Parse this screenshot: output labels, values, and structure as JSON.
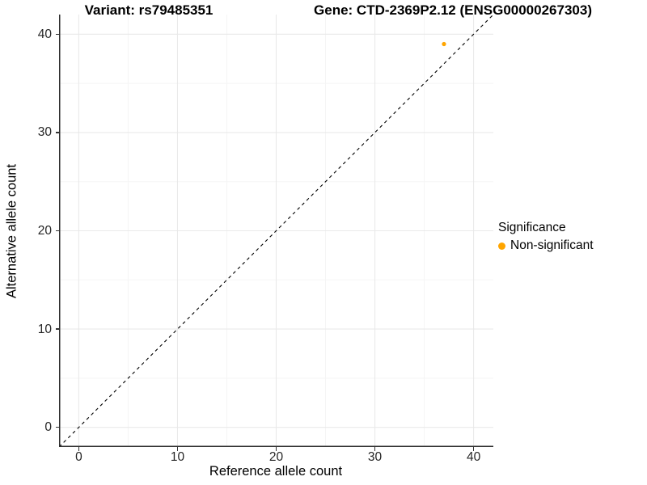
{
  "titles": {
    "variant": "Variant: rs79485351",
    "gene": "Gene: CTD-2369P2.12 (ENSG00000267303)"
  },
  "chart_data": {
    "type": "scatter",
    "xlabel": "Reference allele count",
    "ylabel": "Alternative allele count",
    "xlim": [
      -2,
      42
    ],
    "ylim": [
      -2,
      42
    ],
    "xticks": [
      0,
      10,
      20,
      30,
      40
    ],
    "yticks": [
      0,
      10,
      20,
      30,
      40
    ],
    "minor_xticks": [
      5,
      15,
      25,
      35
    ],
    "minor_yticks": [
      5,
      15,
      25,
      35
    ],
    "grid": "major and minor gridlines on, white background",
    "legend": {
      "title": "Significance",
      "position": "right",
      "items": [
        {
          "label": "Non-significant",
          "color": "#FFA500"
        }
      ]
    },
    "series": [
      {
        "name": "Non-significant",
        "color": "#FFA500",
        "points": [
          {
            "x": 37,
            "y": 39
          }
        ]
      }
    ],
    "reference_line": {
      "type": "identity y=x diagonal",
      "style": "dashed",
      "color": "#000000",
      "from": [
        -2,
        -2
      ],
      "to": [
        42,
        42
      ]
    }
  },
  "colors": {
    "point_orange": "#FFA500",
    "grid_major": "#E9E9E9",
    "grid_minor": "#F5F5F5",
    "axis_line": "#2E2E2E",
    "tick_text": "#262626",
    "background": "#FFFFFF"
  }
}
